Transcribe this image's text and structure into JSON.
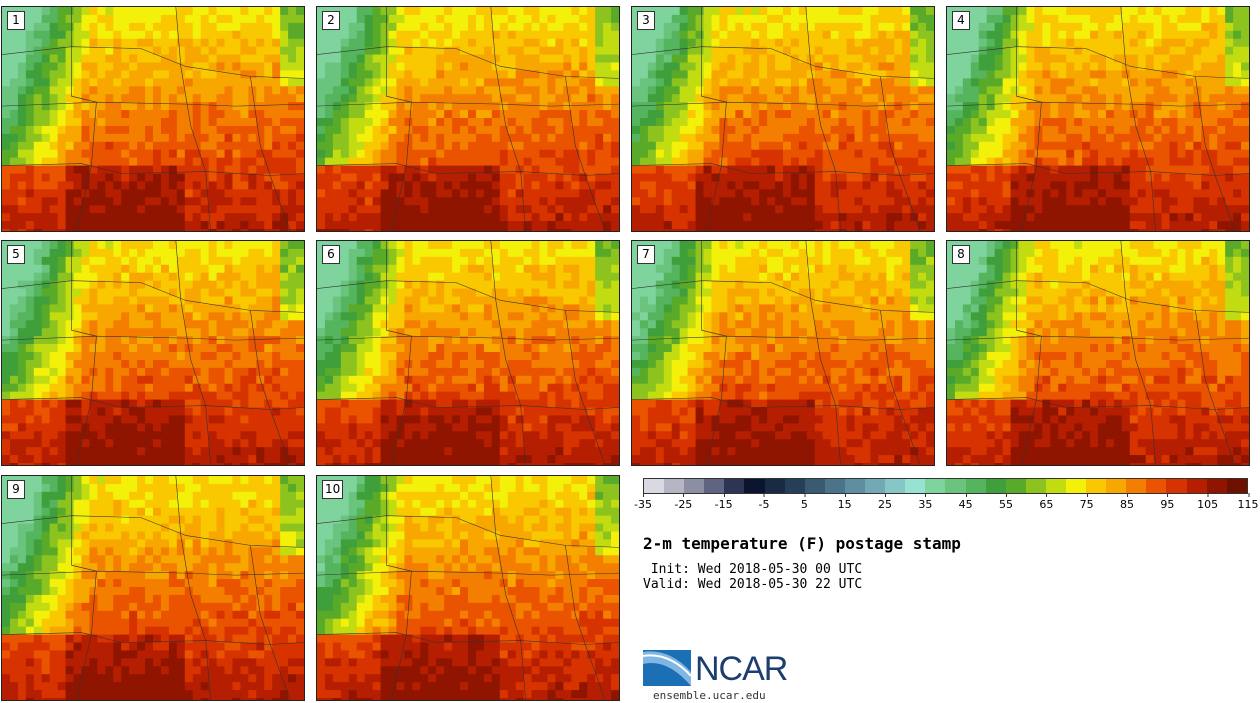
{
  "panels": [
    {
      "label": "1"
    },
    {
      "label": "2"
    },
    {
      "label": "3"
    },
    {
      "label": "4"
    },
    {
      "label": "5"
    },
    {
      "label": "6"
    },
    {
      "label": "7"
    },
    {
      "label": "8"
    },
    {
      "label": "9"
    },
    {
      "label": "10"
    }
  ],
  "colorbar": {
    "colors": [
      "#d9d9e3",
      "#b4b6c3",
      "#8c8fa3",
      "#5f6481",
      "#2e3453",
      "#0b1530",
      "#192a45",
      "#273e58",
      "#3a5a72",
      "#4b738a",
      "#5e8e9f",
      "#73a9b4",
      "#86c6c6",
      "#98e2d2",
      "#7fd39d",
      "#6ac47e",
      "#55b55f",
      "#3f9f3a",
      "#5aaa2a",
      "#8dc31e",
      "#c2dc12",
      "#f3f00a",
      "#f9c800",
      "#f8a600",
      "#f47e00",
      "#ea5400",
      "#d73300",
      "#b51e00",
      "#8f1500",
      "#6e1000"
    ],
    "tick_labels": [
      "-35",
      "-25",
      "-15",
      "-5",
      "5",
      "15",
      "25",
      "35",
      "45",
      "55",
      "65",
      "75",
      "85",
      "95",
      "105",
      "115"
    ]
  },
  "title": "2-m temperature (F) postage stamp",
  "init": " Init: Wed 2018-05-30 00 UTC",
  "valid": "Valid: Wed 2018-05-30 22 UTC",
  "logo": {
    "wordmark": "NCAR"
  },
  "site": "ensemble.ucar.edu"
}
